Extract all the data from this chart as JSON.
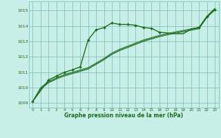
{
  "bg_color": "#c8eee8",
  "grid_color": "#7ab8b0",
  "line_color_dark": "#1a6b1a",
  "line_color_mid": "#2e7d32",
  "xlabel": "Graphe pression niveau de la mer (hPa)",
  "xlim": [
    -0.5,
    23.5
  ],
  "ylim": [
    1008.7,
    1015.6
  ],
  "yticks": [
    1009,
    1010,
    1011,
    1012,
    1013,
    1014,
    1015
  ],
  "xticks": [
    0,
    1,
    2,
    3,
    4,
    5,
    6,
    7,
    8,
    9,
    10,
    11,
    12,
    13,
    14,
    15,
    16,
    17,
    18,
    19,
    20,
    21,
    22,
    23
  ],
  "series1_x": [
    0,
    1,
    2,
    3,
    4,
    5,
    6,
    7,
    8,
    9,
    10,
    11,
    12,
    13,
    14,
    15,
    16,
    17,
    18,
    19,
    20,
    21,
    22,
    23
  ],
  "series1_y": [
    1009.1,
    1009.8,
    1010.5,
    1010.75,
    1011.0,
    1011.15,
    1011.35,
    1013.1,
    1013.75,
    1013.9,
    1014.2,
    1014.1,
    1014.1,
    1014.05,
    1013.9,
    1013.85,
    1013.6,
    1013.55,
    1013.5,
    1013.5,
    1013.8,
    1013.9,
    1014.6,
    1015.05
  ],
  "series2_x": [
    0,
    1,
    2,
    3,
    4,
    5,
    6,
    7,
    8,
    9,
    10,
    11,
    12,
    13,
    14,
    15,
    16,
    17,
    18,
    19,
    20,
    21,
    22,
    23
  ],
  "series2_y": [
    1009.1,
    1009.9,
    1010.3,
    1010.55,
    1010.75,
    1010.9,
    1011.05,
    1011.2,
    1011.5,
    1011.8,
    1012.15,
    1012.4,
    1012.6,
    1012.8,
    1013.0,
    1013.15,
    1013.3,
    1013.42,
    1013.52,
    1013.62,
    1013.72,
    1013.82,
    1014.55,
    1015.05
  ],
  "series3_x": [
    0,
    1,
    2,
    3,
    4,
    5,
    6,
    7,
    8,
    9,
    10,
    11,
    12,
    13,
    14,
    15,
    16,
    17,
    18,
    19,
    20,
    21,
    22,
    23
  ],
  "series3_y": [
    1009.1,
    1009.95,
    1010.35,
    1010.6,
    1010.8,
    1010.95,
    1011.1,
    1011.25,
    1011.55,
    1011.85,
    1012.2,
    1012.45,
    1012.65,
    1012.85,
    1013.05,
    1013.2,
    1013.35,
    1013.47,
    1013.57,
    1013.67,
    1013.77,
    1013.87,
    1014.6,
    1015.1
  ],
  "series4_x": [
    0,
    1,
    2,
    3,
    4,
    5,
    6,
    7,
    8,
    9,
    10,
    11,
    12,
    13,
    14,
    15,
    16,
    17,
    18,
    19,
    20,
    21,
    22,
    23
  ],
  "series4_y": [
    1009.1,
    1010.0,
    1010.4,
    1010.65,
    1010.85,
    1011.0,
    1011.15,
    1011.3,
    1011.6,
    1011.9,
    1012.25,
    1012.5,
    1012.7,
    1012.9,
    1013.1,
    1013.25,
    1013.4,
    1013.52,
    1013.62,
    1013.72,
    1013.82,
    1013.92,
    1014.65,
    1015.15
  ],
  "marker_x": [
    0,
    2,
    3,
    4,
    5,
    6,
    7,
    8,
    9,
    10,
    11,
    12,
    13,
    14,
    15,
    16,
    21,
    22,
    23
  ],
  "marker_y": [
    1009.1,
    1010.5,
    1010.75,
    1011.0,
    1011.15,
    1011.35,
    1013.1,
    1013.75,
    1013.9,
    1014.2,
    1014.1,
    1014.1,
    1014.05,
    1013.9,
    1013.85,
    1013.6,
    1013.9,
    1014.6,
    1015.05
  ]
}
